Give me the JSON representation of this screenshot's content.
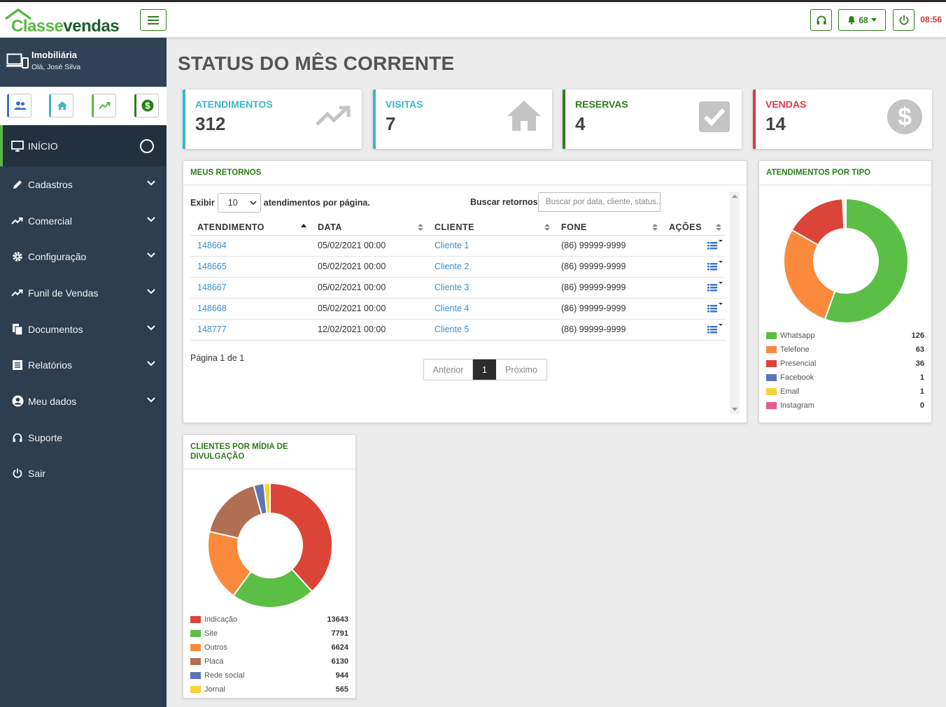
{
  "brand": {
    "part1": "Classe",
    "part2": "vendas"
  },
  "topbar": {
    "notif_count": "68",
    "clock": "08:56"
  },
  "sidebar": {
    "org": "Imobiliária",
    "greeting": "Olá, José Silva",
    "items": [
      {
        "label": "INÍCIO",
        "icon": "monitor-icon"
      },
      {
        "label": "Cadastros",
        "icon": "pencil-icon"
      },
      {
        "label": "Comercial",
        "icon": "trend-icon"
      },
      {
        "label": "Configuração",
        "icon": "gear-icon"
      },
      {
        "label": "Funil de Vendas",
        "icon": "trend-icon"
      },
      {
        "label": "Documentos",
        "icon": "documents-icon"
      },
      {
        "label": "Relatórios",
        "icon": "list-icon"
      },
      {
        "label": "Meu dados",
        "icon": "user-icon"
      },
      {
        "label": "Suporte",
        "icon": "headset-icon"
      },
      {
        "label": "Sair",
        "icon": "power-icon"
      }
    ]
  },
  "page_title": "STATUS DO MÊS CORRENTE",
  "stats": [
    {
      "label": "ATENDIMENTOS",
      "value": "312",
      "color": "#3bb7c4"
    },
    {
      "label": "VISITAS",
      "value": "7",
      "color": "#3bb7c4"
    },
    {
      "label": "RESERVAS",
      "value": "4",
      "color": "#2e7d1a"
    },
    {
      "label": "VENDAS",
      "value": "14",
      "color": "#d9384a"
    }
  ],
  "retornos": {
    "title": "MEUS RETORNOS",
    "show_label": "Exibir",
    "page_size": "10",
    "per_page_label": "atendimentos por página.",
    "search_label": "Buscar retornos",
    "search_placeholder": "Buscar por data, cliente, status...",
    "columns": [
      "ATENDIMENTO",
      "DATA",
      "CLIENTE",
      "FONE",
      "AÇÕES"
    ],
    "rows": [
      {
        "id": "148664",
        "date": "05/02/2021 00:00",
        "client": "Cliente 1",
        "phone": "(86) 99999-9999"
      },
      {
        "id": "148665",
        "date": "05/02/2021 00:00",
        "client": "Cliente 2",
        "phone": "(86) 99999-9999"
      },
      {
        "id": "148667",
        "date": "05/02/2021 00:00",
        "client": "Cliente 3",
        "phone": "(86) 99999-9999"
      },
      {
        "id": "148668",
        "date": "05/02/2021 00:00",
        "client": "Cliente 4",
        "phone": "(86) 99999-9999"
      },
      {
        "id": "148777",
        "date": "12/02/2021 00:00",
        "client": "Cliente 5",
        "phone": "(86) 99999-9999"
      }
    ],
    "page_info": "Página 1 de 1",
    "prev": "Anterior",
    "current_page": "1",
    "next": "Próximo"
  },
  "tipo": {
    "title": "ATENDIMENTOS POR TIPO",
    "items": [
      {
        "name": "Whatsapp",
        "value": 126,
        "color": "#5cbf45"
      },
      {
        "name": "Telefone",
        "value": 63,
        "color": "#fb8a3c"
      },
      {
        "name": "Presencial",
        "value": 36,
        "color": "#db4437"
      },
      {
        "name": "Facebook",
        "value": 1,
        "color": "#5b75b8"
      },
      {
        "name": "Email",
        "value": 1,
        "color": "#f7d237"
      },
      {
        "name": "Instagram",
        "value": 0,
        "color": "#e85a8a"
      }
    ]
  },
  "midia": {
    "title_line1": "CLIENTES POR MÍDIA DE",
    "title_line2": "DIVULGAÇÃO",
    "items": [
      {
        "name": "Indicação",
        "value": 13643,
        "color": "#db4437"
      },
      {
        "name": "Site",
        "value": 7791,
        "color": "#5cbf45"
      },
      {
        "name": "Outros",
        "value": 6624,
        "color": "#fb8a3c"
      },
      {
        "name": "Placa",
        "value": 6130,
        "color": "#b06e52"
      },
      {
        "name": "Rede social",
        "value": 944,
        "color": "#5b75b8"
      },
      {
        "name": "Jornal",
        "value": 565,
        "color": "#f7d237"
      }
    ]
  }
}
